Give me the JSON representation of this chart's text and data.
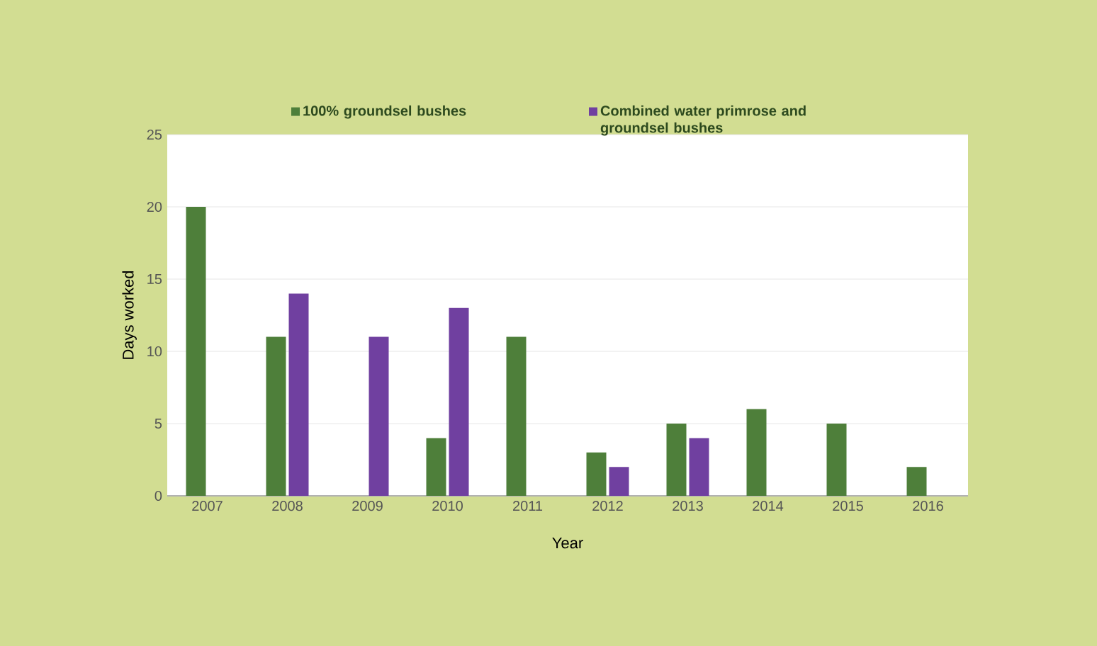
{
  "chart_data": {
    "type": "bar",
    "xlabel": "Year",
    "ylabel": "Days worked",
    "categories": [
      "2007",
      "2008",
      "2009",
      "2010",
      "2011",
      "2012",
      "2013",
      "2014",
      "2015",
      "2016"
    ],
    "series": [
      {
        "name": "100% groundsel bushes",
        "color": "#4e7f3a",
        "values": [
          20,
          11,
          null,
          4,
          11,
          3,
          5,
          6,
          5,
          2
        ]
      },
      {
        "name": "Combined water primrose and groundsel bushes",
        "color": "#7040a0",
        "values": [
          null,
          14,
          11,
          13,
          null,
          2,
          4,
          null,
          null,
          null
        ]
      }
    ],
    "ylim": [
      0,
      25
    ],
    "yticks": [
      0,
      5,
      10,
      15,
      20,
      25
    ],
    "grid": "y",
    "legend": "top"
  }
}
